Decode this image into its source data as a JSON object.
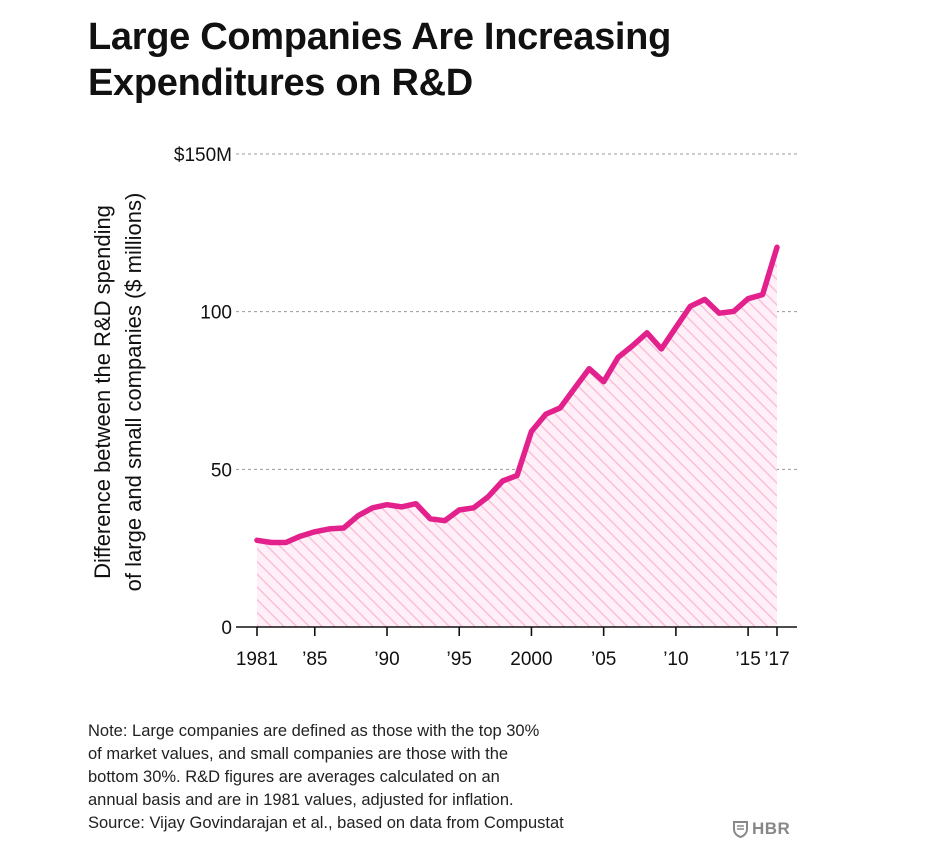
{
  "title_line1": "Large Companies Are Increasing",
  "title_line2": "Expenditures on R&D",
  "chart_data": {
    "type": "area",
    "title": "Large Companies Are Increasing Expenditures on R&D",
    "ylabel_line1": "Difference between the R&D spending",
    "ylabel_line2": "of large and small companies ($ millions)",
    "ylim": [
      0,
      150
    ],
    "xlim": [
      1981,
      2017
    ],
    "y_ticks": [
      0,
      50,
      100,
      150
    ],
    "y_tick_labels": [
      "0",
      "50",
      "100",
      "$150M"
    ],
    "x_ticks": [
      1981,
      1985,
      1990,
      1995,
      2000,
      2005,
      2010,
      2015,
      2017
    ],
    "x_tick_labels": [
      "1981",
      "’85",
      "’90",
      "’95",
      "2000",
      "’05",
      "’10",
      "’15",
      "’17"
    ],
    "grid": "horizontal dashed",
    "line_color": "#e3218c",
    "fill_color": "#f7c6df",
    "x": [
      1981,
      1982,
      1983,
      1984,
      1985,
      1986,
      1987,
      1988,
      1989,
      1990,
      1991,
      1992,
      1993,
      1994,
      1995,
      1996,
      1997,
      1998,
      1999,
      2000,
      2001,
      2002,
      2003,
      2004,
      2005,
      2006,
      2007,
      2008,
      2009,
      2010,
      2011,
      2012,
      2013,
      2014,
      2015,
      2016,
      2017
    ],
    "values": [
      27.5,
      26.8,
      26.8,
      28.8,
      30.2,
      31.1,
      31.4,
      35.3,
      37.8,
      38.8,
      38.1,
      39.1,
      34.3,
      33.7,
      37.1,
      37.8,
      41.3,
      46.3,
      48.0,
      62.0,
      67.5,
      69.5,
      75.8,
      81.9,
      77.8,
      85.5,
      89.2,
      93.3,
      88.2,
      95.0,
      101.7,
      103.9,
      99.5,
      100.1,
      104.1,
      105.4,
      120.4
    ]
  },
  "note_lines": [
    "Note: Large companies are defined as those with the top 30%",
    "of market values, and small companies are those with the",
    "bottom 30%. R&D figures are averages calculated on an",
    "annual basis and are in 1981 values, adjusted for inflation.",
    "Source: Vijay Govindarajan et al., based on data from Compustat"
  ],
  "logo_text": "HBR",
  "logo_icon": "shield-icon"
}
